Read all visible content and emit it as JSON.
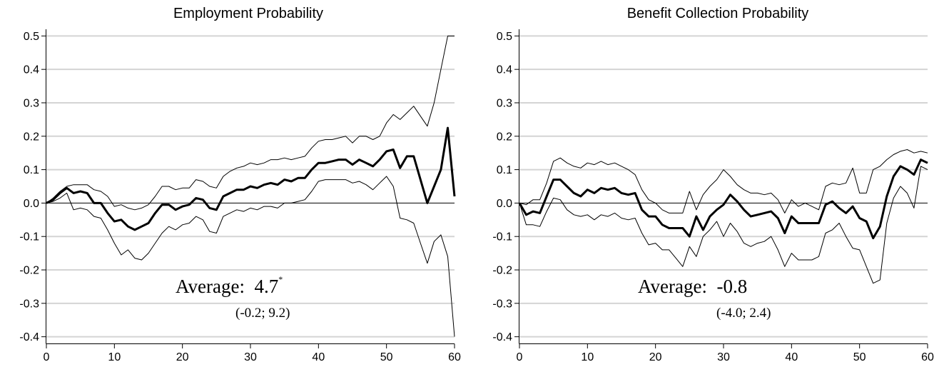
{
  "chart_data": [
    {
      "type": "line",
      "title": "Employment Probability",
      "xlim": [
        0,
        60
      ],
      "ylim": [
        -0.42,
        0.52
      ],
      "xticks": [
        0,
        10,
        20,
        30,
        40,
        50,
        60
      ],
      "yticks": [
        -0.4,
        -0.3,
        -0.2,
        -0.1,
        0.0,
        0.1,
        0.2,
        0.3,
        0.4,
        0.5
      ],
      "xtick_labels": [
        "0",
        "10",
        "20",
        "30",
        "40",
        "50",
        "60"
      ],
      "ytick_labels": [
        "-0.4",
        "-0.3",
        "-0.2",
        "-0.1",
        "0.0",
        "0.1",
        "0.2",
        "0.3",
        "0.4",
        "0.5"
      ],
      "grid": true,
      "annotation": {
        "label": "Average:",
        "value": "4.7",
        "mark": "*",
        "ci": "(-0.2; 9.2)"
      },
      "series": [
        {
          "role": "estimate",
          "values": [
            0.0,
            0.01,
            0.03,
            0.045,
            0.03,
            0.035,
            0.03,
            0.0,
            0.0,
            -0.03,
            -0.055,
            -0.05,
            -0.07,
            -0.08,
            -0.07,
            -0.06,
            -0.03,
            -0.005,
            -0.005,
            -0.02,
            -0.01,
            -0.005,
            0.015,
            0.01,
            -0.015,
            -0.02,
            0.02,
            0.03,
            0.04,
            0.04,
            0.05,
            0.045,
            0.055,
            0.06,
            0.055,
            0.07,
            0.065,
            0.075,
            0.075,
            0.1,
            0.12,
            0.12,
            0.125,
            0.13,
            0.13,
            0.115,
            0.13,
            0.12,
            0.11,
            0.13,
            0.155,
            0.16,
            0.105,
            0.14,
            0.14,
            0.07,
            0.0,
            0.05,
            0.1,
            0.225,
            0.02
          ]
        },
        {
          "role": "upper",
          "values": [
            0.0,
            0.015,
            0.035,
            0.05,
            0.055,
            0.055,
            0.055,
            0.04,
            0.035,
            0.02,
            -0.01,
            -0.005,
            -0.015,
            -0.02,
            -0.015,
            -0.005,
            0.02,
            0.05,
            0.05,
            0.04,
            0.045,
            0.045,
            0.07,
            0.065,
            0.05,
            0.045,
            0.08,
            0.095,
            0.105,
            0.11,
            0.12,
            0.115,
            0.12,
            0.13,
            0.13,
            0.135,
            0.13,
            0.135,
            0.14,
            0.165,
            0.185,
            0.19,
            0.19,
            0.195,
            0.2,
            0.18,
            0.2,
            0.2,
            0.19,
            0.2,
            0.24,
            0.265,
            0.25,
            0.27,
            0.29,
            0.26,
            0.23,
            0.3,
            0.4,
            0.5,
            0.5
          ]
        },
        {
          "role": "lower",
          "values": [
            0.0,
            0.005,
            0.015,
            0.03,
            -0.02,
            -0.015,
            -0.02,
            -0.04,
            -0.045,
            -0.08,
            -0.12,
            -0.155,
            -0.14,
            -0.165,
            -0.17,
            -0.15,
            -0.12,
            -0.09,
            -0.07,
            -0.08,
            -0.065,
            -0.06,
            -0.04,
            -0.05,
            -0.085,
            -0.09,
            -0.04,
            -0.03,
            -0.02,
            -0.025,
            -0.015,
            -0.02,
            -0.01,
            -0.01,
            -0.015,
            0.0,
            0.0,
            0.005,
            0.01,
            0.035,
            0.065,
            0.07,
            0.07,
            0.07,
            0.07,
            0.06,
            0.065,
            0.055,
            0.04,
            0.06,
            0.08,
            0.05,
            -0.045,
            -0.05,
            -0.06,
            -0.12,
            -0.18,
            -0.115,
            -0.095,
            -0.16,
            -0.4
          ]
        }
      ]
    },
    {
      "type": "line",
      "title": "Benefit Collection Probability",
      "xlim": [
        0,
        60
      ],
      "ylim": [
        -0.42,
        0.52
      ],
      "xticks": [
        0,
        10,
        20,
        30,
        40,
        50,
        60
      ],
      "yticks": [
        -0.4,
        -0.3,
        -0.2,
        -0.1,
        0.0,
        0.1,
        0.2,
        0.3,
        0.4,
        0.5
      ],
      "xtick_labels": [
        "0",
        "10",
        "20",
        "30",
        "40",
        "50",
        "60"
      ],
      "ytick_labels": [
        "-0.4",
        "-0.3",
        "-0.2",
        "-0.1",
        "0.0",
        "0.1",
        "0.2",
        "0.3",
        "0.4",
        "0.5"
      ],
      "grid": true,
      "annotation": {
        "label": "Average:",
        "value": "-0.8",
        "mark": "",
        "ci": "(-4.0; 2.4)"
      },
      "series": [
        {
          "role": "estimate",
          "values": [
            0.0,
            -0.035,
            -0.025,
            -0.03,
            0.02,
            0.07,
            0.07,
            0.05,
            0.03,
            0.02,
            0.04,
            0.03,
            0.045,
            0.04,
            0.045,
            0.03,
            0.025,
            0.03,
            -0.02,
            -0.04,
            -0.04,
            -0.065,
            -0.075,
            -0.075,
            -0.075,
            -0.1,
            -0.04,
            -0.08,
            -0.04,
            -0.02,
            -0.005,
            0.025,
            0.005,
            -0.02,
            -0.04,
            -0.035,
            -0.03,
            -0.025,
            -0.045,
            -0.09,
            -0.04,
            -0.06,
            -0.06,
            -0.06,
            -0.06,
            -0.005,
            0.005,
            -0.015,
            -0.03,
            -0.01,
            -0.045,
            -0.055,
            -0.105,
            -0.07,
            0.02,
            0.08,
            0.11,
            0.1,
            0.085,
            0.13,
            0.12
          ]
        },
        {
          "role": "upper",
          "values": [
            0.0,
            -0.005,
            0.01,
            0.01,
            0.06,
            0.125,
            0.135,
            0.12,
            0.11,
            0.105,
            0.12,
            0.115,
            0.125,
            0.115,
            0.12,
            0.11,
            0.1,
            0.085,
            0.04,
            0.01,
            0.0,
            -0.02,
            -0.03,
            -0.03,
            -0.03,
            0.035,
            -0.02,
            0.025,
            0.05,
            0.07,
            0.1,
            0.08,
            0.055,
            0.04,
            0.03,
            0.03,
            0.025,
            0.03,
            0.01,
            -0.03,
            0.01,
            -0.01,
            0.0,
            -0.01,
            -0.02,
            0.05,
            0.06,
            0.055,
            0.06,
            0.105,
            0.03,
            0.03,
            0.1,
            0.11,
            0.13,
            0.145,
            0.155,
            0.16,
            0.15,
            0.155,
            0.15
          ]
        },
        {
          "role": "lower",
          "values": [
            0.0,
            -0.065,
            -0.065,
            -0.07,
            -0.025,
            0.015,
            0.01,
            -0.02,
            -0.035,
            -0.04,
            -0.035,
            -0.05,
            -0.035,
            -0.04,
            -0.03,
            -0.045,
            -0.05,
            -0.045,
            -0.09,
            -0.125,
            -0.12,
            -0.14,
            -0.14,
            -0.165,
            -0.19,
            -0.13,
            -0.16,
            -0.1,
            -0.08,
            -0.055,
            -0.1,
            -0.06,
            -0.085,
            -0.12,
            -0.13,
            -0.12,
            -0.115,
            -0.1,
            -0.14,
            -0.19,
            -0.15,
            -0.17,
            -0.17,
            -0.17,
            -0.16,
            -0.09,
            -0.08,
            -0.06,
            -0.1,
            -0.135,
            -0.14,
            -0.19,
            -0.24,
            -0.23,
            -0.06,
            0.015,
            0.05,
            0.03,
            -0.015,
            0.11,
            0.1
          ]
        }
      ]
    }
  ]
}
